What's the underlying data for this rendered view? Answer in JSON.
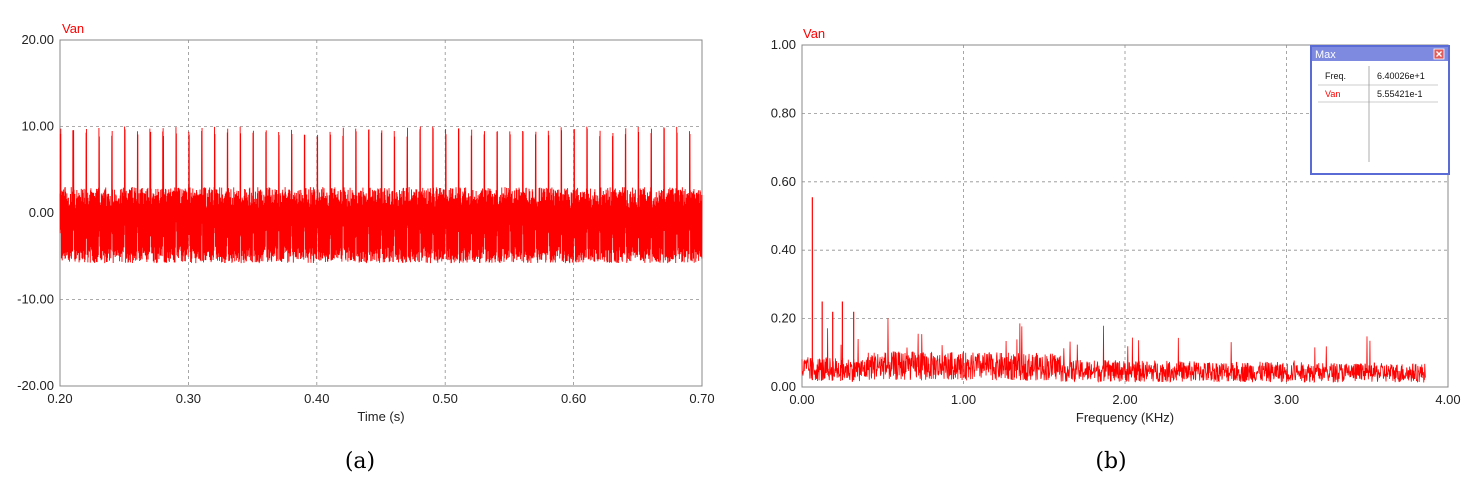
{
  "colors": {
    "series": "#ff0000",
    "grid": "#909090",
    "popup_border": "#5b6bd5",
    "popup_title_bg": "#7d8ae0"
  },
  "chart_data": [
    {
      "type": "line",
      "series_name": "Van",
      "xlabel": "Time (s)",
      "xlim": [
        0.2,
        0.7
      ],
      "ylim": [
        -20,
        20
      ],
      "xticks": [
        "0.20",
        "0.30",
        "0.40",
        "0.50",
        "0.60",
        "0.70"
      ],
      "yticks": [
        "20.00",
        "10.00",
        "0.00",
        "-10.00",
        "-20.00"
      ],
      "grid": true,
      "caption": "(a)",
      "pulse_period_s": 0.01,
      "pulse_peak": 10.0,
      "baseline_band": [
        -5.8,
        3.0
      ]
    },
    {
      "type": "line",
      "series_name": "Van",
      "xlabel": "Frequency (KHz)",
      "xlim": [
        0.0,
        4.0
      ],
      "ylim": [
        0.0,
        1.0
      ],
      "xticks": [
        "0.00",
        "1.00",
        "2.00",
        "3.00",
        "4.00"
      ],
      "yticks": [
        "1.00",
        "0.80",
        "0.60",
        "0.40",
        "0.20",
        "0.00"
      ],
      "grid": true,
      "caption": "(b)",
      "data_end_khz": 3.86,
      "peaks": [
        {
          "x": 0.064,
          "y": 0.555
        },
        {
          "x": 0.125,
          "y": 0.25
        },
        {
          "x": 0.19,
          "y": 0.22
        },
        {
          "x": 0.25,
          "y": 0.25
        },
        {
          "x": 0.32,
          "y": 0.22
        }
      ],
      "popup": {
        "title": "Max",
        "rows": [
          {
            "label": "Freq.",
            "value": "6.40026e+1"
          },
          {
            "label": "Van",
            "value": "5.55421e-1"
          }
        ]
      }
    }
  ]
}
